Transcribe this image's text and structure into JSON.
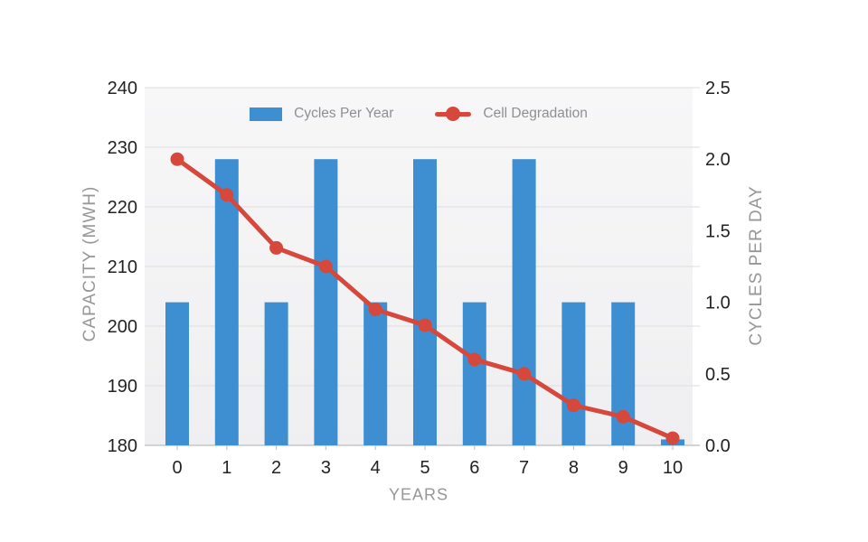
{
  "page": {
    "background": "#FFFFFF"
  },
  "colors": {
    "bar": "#3E8FD2",
    "line": "#D6473C",
    "grid": "#DEDEDF",
    "axis_line": "#C6C6C8",
    "tick_text": "#222222",
    "muted_text": "#97979A",
    "plot_bg_top": "#F7F7F8",
    "plot_bg_bottom": "#EFEFF1"
  },
  "chart_data": {
    "type": "combo-bar-line",
    "categories": [
      "0",
      "1",
      "2",
      "3",
      "4",
      "5",
      "6",
      "7",
      "8",
      "9",
      "10"
    ],
    "series": [
      {
        "name": "Cycles Per Year",
        "type": "bar",
        "axis": "left",
        "color": "#3E8FD2",
        "values": [
          204,
          228,
          204,
          228,
          204,
          228,
          204,
          228,
          204,
          204,
          181
        ]
      },
      {
        "name": "Cell Degradation",
        "type": "line",
        "axis": "right",
        "color": "#D6473C",
        "values": [
          2.0,
          1.75,
          1.38,
          1.25,
          0.95,
          0.84,
          0.6,
          0.5,
          0.28,
          0.2,
          0.05
        ]
      }
    ],
    "xlabel": "YEARS",
    "left_axis": {
      "label": "CAPACITY (MWH)",
      "min": 180,
      "max": 240,
      "ticks": [
        240,
        230,
        220,
        210,
        200,
        190,
        180
      ]
    },
    "right_axis": {
      "label": "CYCLES PER DAY",
      "min": 0,
      "max": 2.5,
      "ticks": [
        "2.5",
        "2.0",
        "1.5",
        "1.0",
        "0.5",
        "0.0"
      ]
    },
    "grid": true,
    "legend_position": "top-center"
  }
}
